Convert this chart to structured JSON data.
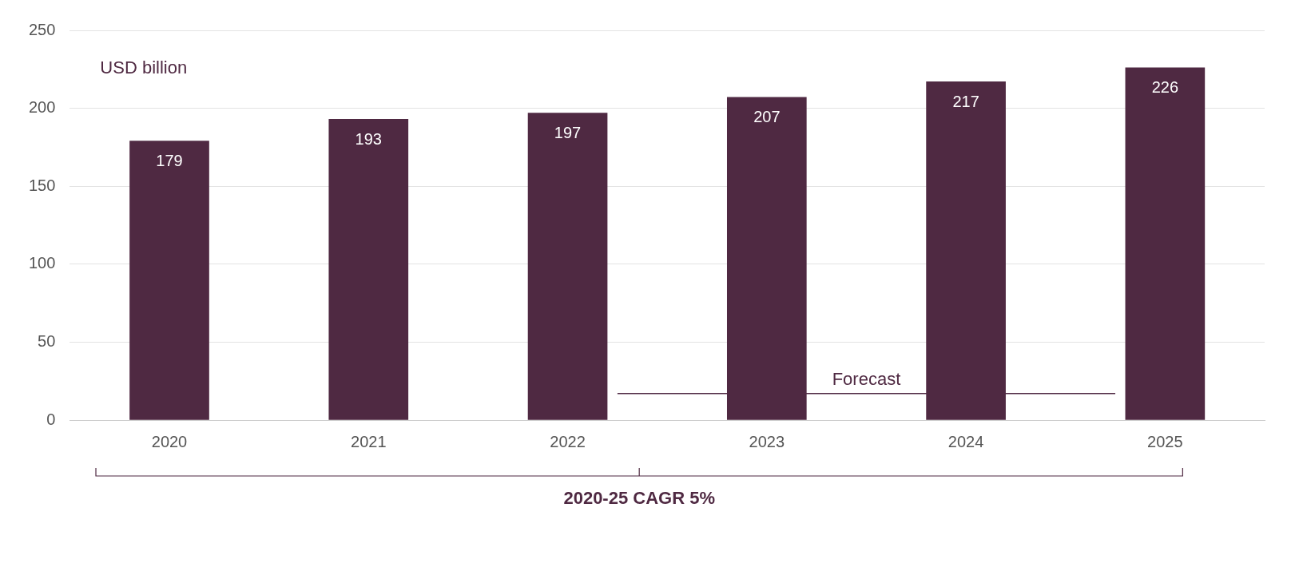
{
  "chart_data": {
    "type": "bar",
    "ylabel": "USD billion",
    "x": [
      2020,
      2021,
      2022,
      2023,
      2024,
      2025
    ],
    "series": [
      {
        "color": "#4f2942",
        "values": [
          179,
          193,
          197,
          207,
          217,
          226
        ],
        "value_labels": [
          "179",
          "193",
          "197",
          "207",
          "217",
          "226"
        ]
      },
      {
        "type": "line",
        "color": "#4f2942",
        "x": [
          2022.25,
          2024.75
        ],
        "values": [
          17,
          17
        ]
      }
    ],
    "xlim": [
      2019.5,
      2025.5
    ],
    "xticks": [
      2020,
      2021,
      2022,
      2023,
      2024,
      2025
    ],
    "ylim": [
      0,
      250
    ],
    "yticks": [
      0,
      50,
      100,
      150,
      200,
      250
    ],
    "grid": "y",
    "annotations": [
      {
        "text": "Forecast",
        "x": 2023.5,
        "y": 17
      },
      "2020-25 CAGR 5%"
    ]
  }
}
